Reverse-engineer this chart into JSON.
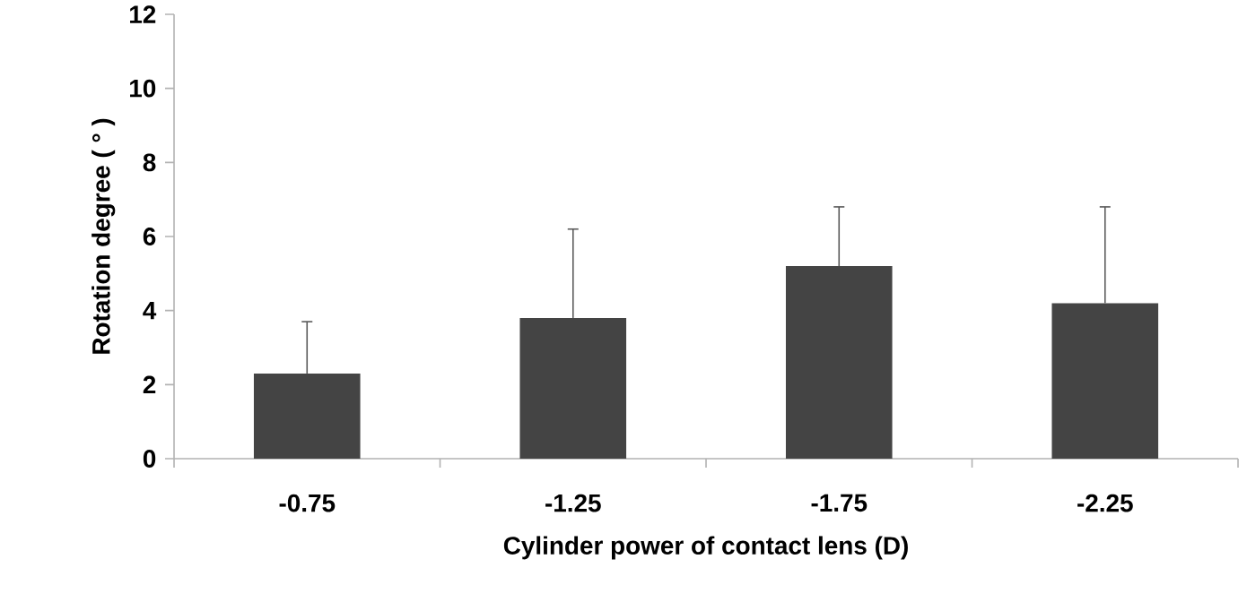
{
  "chart_data": {
    "type": "bar",
    "xlabel": "Cylinder power of contact lens (D)",
    "ylabel": "Rotation degree ( ° )",
    "categories": [
      "-0.75",
      "-1.25",
      "-1.75",
      "-2.25"
    ],
    "values": [
      2.3,
      3.8,
      5.2,
      4.2
    ],
    "errors": [
      [
        2.3,
        3.7
      ],
      [
        3.8,
        6.2
      ],
      [
        5.2,
        6.8
      ],
      [
        4.2,
        6.8
      ]
    ],
    "color": "#444444",
    "ylim": [
      0,
      12
    ],
    "yticks": [
      0,
      2,
      4,
      6,
      8,
      10,
      12
    ]
  }
}
